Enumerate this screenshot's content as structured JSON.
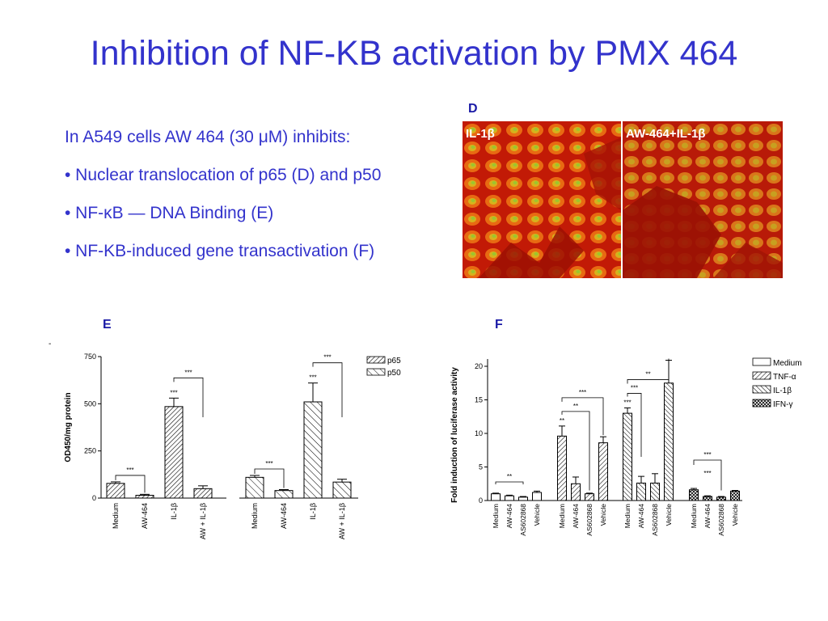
{
  "slide": {
    "title": "Inhibition of NF-KB activation by PMX 464",
    "bullets": [
      "In A549 cells AW 464 (30 μM) inhibits:",
      "• Nuclear translocation of p65 (D) and p50",
      "• NF-κB — DNA Binding (E)",
      "• NF-KB-induced gene transactivation (F)"
    ]
  },
  "panel_d": {
    "letter": "D",
    "left_label": "IL-1β",
    "right_label": "AW-464+IL-1β"
  },
  "chart_data": [
    {
      "panel": "E",
      "type": "bar",
      "ylabel": "OD450/mg protein",
      "ylim": [
        0,
        750
      ],
      "yticks": [
        0,
        250,
        500,
        750
      ],
      "groups": [
        {
          "name": "p65",
          "pattern": "diagonal-dense",
          "categories": [
            "Medium",
            "AW-464",
            "IL-1β",
            "AW + IL-1β"
          ],
          "values": [
            78,
            15,
            485,
            50
          ],
          "errors": [
            8,
            5,
            45,
            15
          ]
        },
        {
          "name": "p50",
          "pattern": "diagonal-sparse",
          "categories": [
            "Medium",
            "AW-464",
            "IL-1β",
            "AW + IL-1β"
          ],
          "values": [
            110,
            40,
            510,
            85
          ],
          "errors": [
            10,
            5,
            100,
            15
          ]
        }
      ],
      "legend": [
        "p65",
        "p50"
      ],
      "legend_position": "top-right",
      "significance": [
        "***",
        "***",
        "***",
        "***",
        "***",
        "***"
      ]
    },
    {
      "panel": "F",
      "type": "bar",
      "ylabel": "Fold induction of luciferase activity",
      "ylim": [
        0,
        20
      ],
      "yticks": [
        0,
        5,
        10,
        15,
        20
      ],
      "groups": [
        {
          "name": "Medium",
          "pattern": "plain",
          "categories": [
            "Medium",
            "AW-464",
            "AS602868",
            "Vehicle"
          ],
          "values": [
            1.0,
            0.7,
            0.5,
            1.2
          ],
          "errors": [
            0.1,
            0.1,
            0.1,
            0.2
          ]
        },
        {
          "name": "TNF-α",
          "pattern": "diagonal",
          "categories": [
            "Medium",
            "AW-464",
            "AS602868",
            "Vehicle"
          ],
          "values": [
            9.6,
            2.5,
            1.0,
            8.6
          ],
          "errors": [
            1.5,
            1.0,
            0.1,
            0.9
          ]
        },
        {
          "name": "IL-1β",
          "pattern": "diagonal-other",
          "categories": [
            "Medium",
            "AW-464",
            "AS602868",
            "Vehicle"
          ],
          "values": [
            13.0,
            2.6,
            2.6,
            17.5
          ],
          "errors": [
            0.8,
            1.0,
            1.4,
            3.4
          ]
        },
        {
          "name": "IFN-γ",
          "pattern": "crosshatch",
          "categories": [
            "Medium",
            "AW-464",
            "AS602868",
            "Vehicle"
          ],
          "values": [
            1.6,
            0.6,
            0.5,
            1.4
          ],
          "errors": [
            0.2,
            0.1,
            0.1,
            0.1
          ]
        }
      ],
      "legend": [
        "Medium",
        "TNF-α",
        "IL-1β",
        "IFN-γ"
      ],
      "legend_position": "top-right",
      "significance": [
        "**",
        "***",
        "**",
        "**",
        "**",
        "***",
        "***",
        "***"
      ]
    }
  ]
}
